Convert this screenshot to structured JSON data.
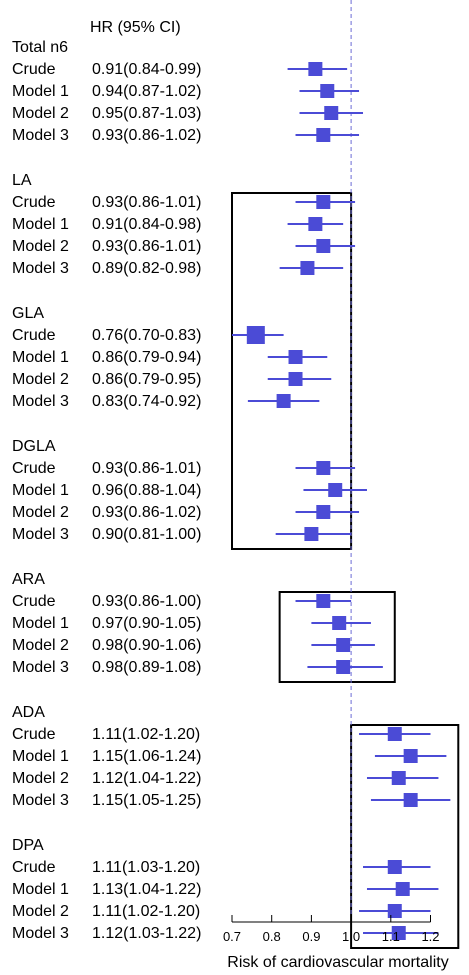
{
  "chart_data": {
    "type": "forest",
    "header": "HR (95% CI)",
    "xlabel": "Risk of cardiovascular mortality",
    "xlim": [
      0.7,
      1.25
    ],
    "xticks": [
      0.7,
      0.8,
      0.9,
      1.0,
      1.1,
      1.2
    ],
    "xtick_labels": [
      "0.7",
      "0.8",
      "0.9",
      "1.0",
      "1.1",
      "1.2"
    ],
    "reference_line": 1.0,
    "marker_color": "#4b4bd6",
    "groups": [
      {
        "name": "Total n6",
        "boxed": false,
        "rows": [
          {
            "label": "Crude",
            "text": "0.91(0.84-0.99)",
            "hr": 0.91,
            "lo": 0.84,
            "hi": 0.99
          },
          {
            "label": "Model 1",
            "text": "0.94(0.87-1.02)",
            "hr": 0.94,
            "lo": 0.87,
            "hi": 1.02
          },
          {
            "label": "Model 2",
            "text": "0.95(0.87-1.03)",
            "hr": 0.95,
            "lo": 0.87,
            "hi": 1.03
          },
          {
            "label": "Model 3",
            "text": "0.93(0.86-1.02)",
            "hr": 0.93,
            "lo": 0.86,
            "hi": 1.02
          }
        ]
      },
      {
        "name": "LA",
        "boxed": true,
        "rows": [
          {
            "label": "Crude",
            "text": "0.93(0.86-1.01)",
            "hr": 0.93,
            "lo": 0.86,
            "hi": 1.01
          },
          {
            "label": "Model 1",
            "text": "0.91(0.84-0.98)",
            "hr": 0.91,
            "lo": 0.84,
            "hi": 0.98
          },
          {
            "label": "Model 2",
            "text": "0.93(0.86-1.01)",
            "hr": 0.93,
            "lo": 0.86,
            "hi": 1.01
          },
          {
            "label": "Model 3",
            "text": "0.89(0.82-0.98)",
            "hr": 0.89,
            "lo": 0.82,
            "hi": 0.98
          }
        ]
      },
      {
        "name": "GLA",
        "boxed": true,
        "rows": [
          {
            "label": "Crude",
            "text": "0.76(0.70-0.83)",
            "hr": 0.76,
            "lo": 0.7,
            "hi": 0.83
          },
          {
            "label": "Model 1",
            "text": "0.86(0.79-0.94)",
            "hr": 0.86,
            "lo": 0.79,
            "hi": 0.94
          },
          {
            "label": "Model 2",
            "text": "0.86(0.79-0.95)",
            "hr": 0.86,
            "lo": 0.79,
            "hi": 0.95
          },
          {
            "label": "Model 3",
            "text": "0.83(0.74-0.92)",
            "hr": 0.83,
            "lo": 0.74,
            "hi": 0.92
          }
        ]
      },
      {
        "name": "DGLA",
        "boxed": true,
        "rows": [
          {
            "label": "Crude",
            "text": "0.93(0.86-1.01)",
            "hr": 0.93,
            "lo": 0.86,
            "hi": 1.01
          },
          {
            "label": "Model 1",
            "text": "0.96(0.88-1.04)",
            "hr": 0.96,
            "lo": 0.88,
            "hi": 1.04
          },
          {
            "label": "Model 2",
            "text": "0.93(0.86-1.02)",
            "hr": 0.93,
            "lo": 0.86,
            "hi": 1.02
          },
          {
            "label": "Model 3",
            "text": "0.90(0.81-1.00)",
            "hr": 0.9,
            "lo": 0.81,
            "hi": 1.0
          }
        ]
      },
      {
        "name": "ARA",
        "boxed": true,
        "rows": [
          {
            "label": "Crude",
            "text": "0.93(0.86-1.00)",
            "hr": 0.93,
            "lo": 0.86,
            "hi": 1.0
          },
          {
            "label": "Model 1",
            "text": "0.97(0.90-1.05)",
            "hr": 0.97,
            "lo": 0.9,
            "hi": 1.05
          },
          {
            "label": "Model 2",
            "text": "0.98(0.90-1.06)",
            "hr": 0.98,
            "lo": 0.9,
            "hi": 1.06
          },
          {
            "label": "Model 3",
            "text": "0.98(0.89-1.08)",
            "hr": 0.98,
            "lo": 0.89,
            "hi": 1.08
          }
        ]
      },
      {
        "name": "ADA",
        "boxed": true,
        "rows": [
          {
            "label": "Crude",
            "text": "1.11(1.02-1.20)",
            "hr": 1.11,
            "lo": 1.02,
            "hi": 1.2
          },
          {
            "label": "Model 1",
            "text": "1.15(1.06-1.24)",
            "hr": 1.15,
            "lo": 1.06,
            "hi": 1.24
          },
          {
            "label": "Model 2",
            "text": "1.12(1.04-1.22)",
            "hr": 1.12,
            "lo": 1.04,
            "hi": 1.22
          },
          {
            "label": "Model 3",
            "text": "1.15(1.05-1.25)",
            "hr": 1.15,
            "lo": 1.05,
            "hi": 1.25
          }
        ]
      },
      {
        "name": "DPA",
        "boxed": true,
        "rows": [
          {
            "label": "Crude",
            "text": "1.11(1.03-1.20)",
            "hr": 1.11,
            "lo": 1.03,
            "hi": 1.2
          },
          {
            "label": "Model 1",
            "text": "1.13(1.04-1.22)",
            "hr": 1.13,
            "lo": 1.04,
            "hi": 1.22
          },
          {
            "label": "Model 2",
            "text": "1.11(1.02-1.20)",
            "hr": 1.11,
            "lo": 1.02,
            "hi": 1.2
          },
          {
            "label": "Model 3",
            "text": "1.12(1.03-1.22)",
            "hr": 1.12,
            "lo": 1.03,
            "hi": 1.22
          }
        ]
      }
    ],
    "highlight_boxes": [
      {
        "groups": [
          "LA",
          "GLA",
          "DGLA"
        ],
        "xrange": [
          0.7,
          1.0
        ]
      },
      {
        "groups": [
          "ARA"
        ],
        "xrange": [
          0.82,
          1.11
        ]
      },
      {
        "groups": [
          "ADA",
          "DPA"
        ],
        "xrange": [
          1.0,
          1.27
        ]
      }
    ]
  }
}
